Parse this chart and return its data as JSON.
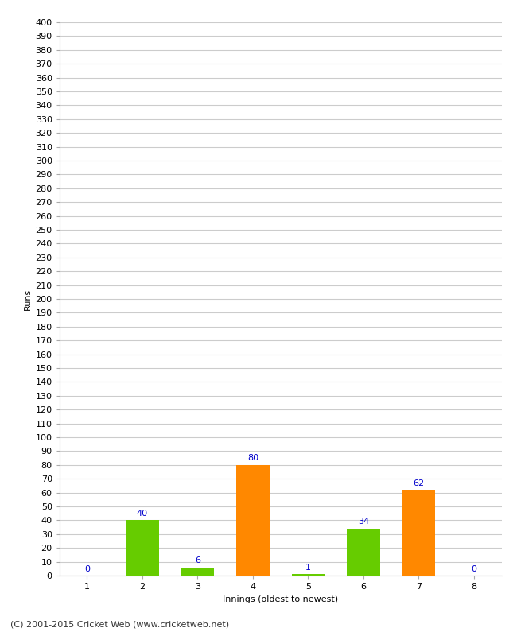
{
  "innings": [
    1,
    2,
    3,
    4,
    5,
    6,
    7,
    8
  ],
  "values": [
    0,
    40,
    6,
    80,
    1,
    34,
    62,
    0
  ],
  "colors": [
    "#66cc00",
    "#66cc00",
    "#66cc00",
    "#ff8800",
    "#66cc00",
    "#66cc00",
    "#ff8800",
    "#66cc00"
  ],
  "xlabel": "Innings (oldest to newest)",
  "ylabel": "Runs",
  "ylim_min": 0,
  "ylim_max": 400,
  "ytick_step": 10,
  "label_color": "#0000cc",
  "label_fontsize": 8,
  "axis_label_fontsize": 8,
  "tick_fontsize": 8,
  "footer": "(C) 2001-2015 Cricket Web (www.cricketweb.net)",
  "footer_fontsize": 8,
  "bg_color": "#ffffff",
  "grid_color": "#cccccc",
  "bar_width": 0.6
}
